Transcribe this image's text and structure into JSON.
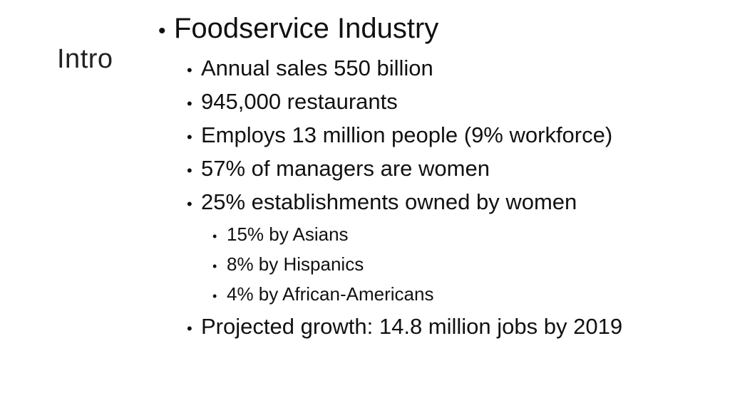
{
  "slide": {
    "title": "Intro",
    "bullets": [
      {
        "marker": "•",
        "text": "Foodservice Industry"
      },
      {
        "marker": "•",
        "text": "Annual sales 550 billion"
      },
      {
        "marker": "•",
        "text": "945,000 restaurants"
      },
      {
        "marker": "•",
        "text": "Employs 13 million people (9% workforce)"
      },
      {
        "marker": "•",
        "text": "57% of managers are women"
      },
      {
        "marker": "•",
        "text": "25% establishments owned by women"
      },
      {
        "marker": "•",
        "text": "15% by Asians"
      },
      {
        "marker": "•",
        "text": "8% by Hispanics"
      },
      {
        "marker": "•",
        "text": "4% by African-Americans"
      },
      {
        "marker": "•",
        "text": "Projected growth: 14.8 million jobs by 2019"
      }
    ]
  }
}
